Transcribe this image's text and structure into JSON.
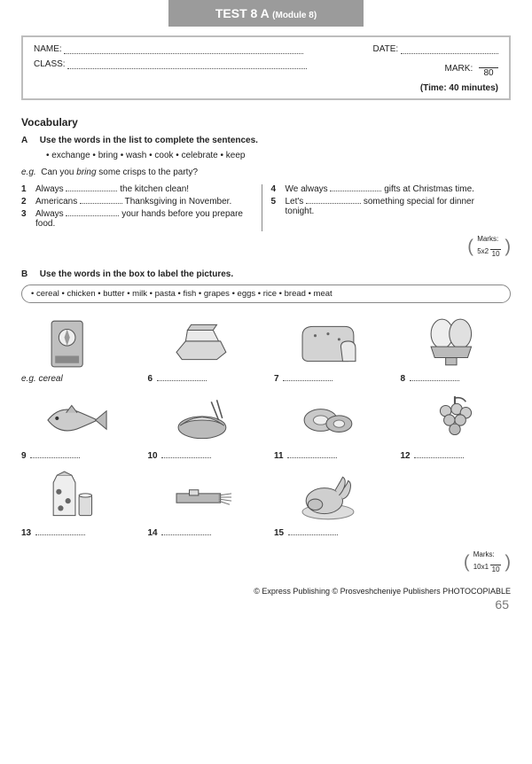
{
  "header": {
    "title": "TEST 8 A",
    "module": "(Module 8)"
  },
  "info": {
    "name_label": "NAME:",
    "date_label": "DATE:",
    "class_label": "CLASS:",
    "mark_label": "MARK:",
    "mark_denom": "80",
    "time_label": "(Time: 40 minutes)"
  },
  "vocab_heading": "Vocabulary",
  "sectionA": {
    "letter": "A",
    "instruction": "Use the words in the list to complete the sentences.",
    "words": "• exchange  • bring  • wash  • cook  • celebrate  • keep",
    "eg_label": "e.g.",
    "eg_pre": "Can you ",
    "eg_ital": "bring",
    "eg_post": " some crisps to the party?",
    "left": [
      {
        "n": "1",
        "pre": "Always ",
        "post": " the kitchen clean!",
        "gap": 58
      },
      {
        "n": "2",
        "pre": "Americans ",
        "post": " Thanksgiving in November.",
        "gap": 48
      },
      {
        "n": "3",
        "pre": "Always ",
        "post": " your hands before you prepare food.",
        "gap": 60
      }
    ],
    "right": [
      {
        "n": "4",
        "pre": "We always ",
        "post": " gifts at Christmas time.",
        "gap": 58
      },
      {
        "n": "5",
        "pre": "Let's ",
        "post": " something special for dinner tonight.",
        "gap": 62
      }
    ],
    "marks": {
      "label": "Marks:",
      "mult": "5x2",
      "total": "10"
    }
  },
  "sectionB": {
    "letter": "B",
    "instruction": "Use the words in the box to label the pictures.",
    "box": "• cereal  • chicken  • butter  • milk  • pasta  • fish  • grapes  • eggs  • rice  • bread  • meat",
    "cells": [
      {
        "n": "e.g.",
        "label": "cereal",
        "eg": true
      },
      {
        "n": "6"
      },
      {
        "n": "7"
      },
      {
        "n": "8"
      },
      {
        "n": "9"
      },
      {
        "n": "10"
      },
      {
        "n": "11"
      },
      {
        "n": "12"
      },
      {
        "n": "13"
      },
      {
        "n": "14"
      },
      {
        "n": "15"
      }
    ],
    "marks": {
      "label": "Marks:",
      "mult": "10x1",
      "total": "10"
    }
  },
  "footer": {
    "copyright": "© Express Publishing © Prosveshcheniye Publishers  PHOTOCOPIABLE",
    "page": "65"
  },
  "style": {
    "gray": "#9b9b9b",
    "dark": "#5a5a5a",
    "light": "#d7d7d7"
  }
}
